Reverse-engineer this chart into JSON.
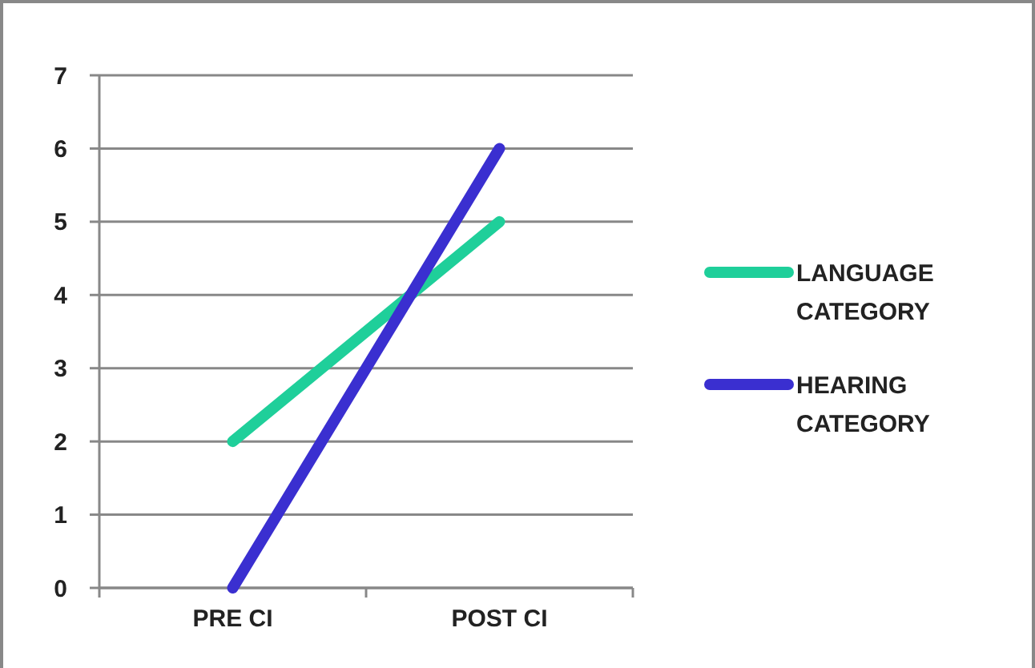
{
  "chart_data": {
    "type": "line",
    "categories": [
      "PRE CI",
      "POST CI"
    ],
    "series": [
      {
        "name": "LANGUAGE CATEGORY",
        "color": "#1fcf9a",
        "values": [
          2,
          5
        ]
      },
      {
        "name": "HEARING CATEGORY",
        "color": "#3a2fd0",
        "values": [
          0,
          6
        ]
      }
    ],
    "ylim": [
      0,
      7
    ],
    "yticks": [
      0,
      1,
      2,
      3,
      4,
      5,
      6,
      7
    ],
    "grid": "y",
    "legend": "right",
    "marker": "none",
    "line_style": "solid"
  }
}
